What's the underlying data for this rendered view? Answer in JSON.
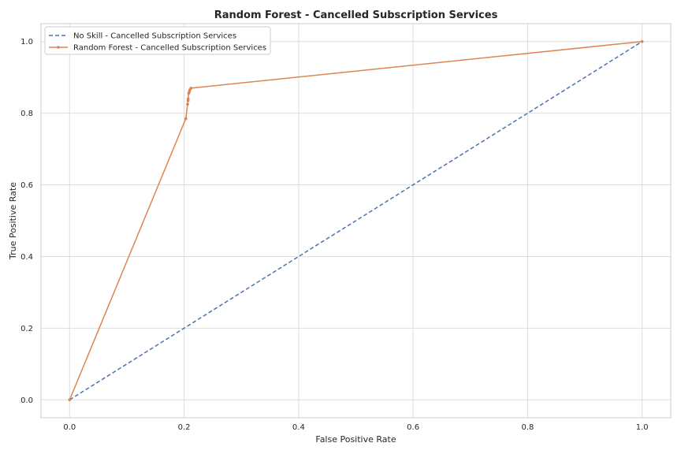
{
  "chart_data": {
    "type": "line",
    "title": "Random Forest - Cancelled Subscription Services",
    "xlabel": "False Positive Rate",
    "ylabel": "True Positive Rate",
    "xlim": [
      -0.05,
      1.05
    ],
    "ylim": [
      -0.05,
      1.05
    ],
    "xticks": [
      0.0,
      0.2,
      0.4,
      0.6,
      0.8,
      1.0
    ],
    "yticks": [
      0.0,
      0.2,
      0.4,
      0.6,
      0.8,
      1.0
    ],
    "xtick_labels": [
      "0.0",
      "0.2",
      "0.4",
      "0.6",
      "0.8",
      "1.0"
    ],
    "ytick_labels": [
      "0.0",
      "0.2",
      "0.4",
      "0.6",
      "0.8",
      "1.0"
    ],
    "grid": true,
    "legend_position": "top-left",
    "series": [
      {
        "name": "No Skill - Cancelled Subscription Services",
        "style": "dashed",
        "color": "#4c72b0",
        "markers": false,
        "x": [
          0.0,
          1.0
        ],
        "y": [
          0.0,
          1.0
        ]
      },
      {
        "name": "Random Forest - Cancelled Subscription Services",
        "style": "solid",
        "color": "#dd8452",
        "markers": true,
        "x": [
          0.0,
          0.203,
          0.206,
          0.207,
          0.207,
          0.208,
          0.209,
          0.21,
          0.212,
          1.0
        ],
        "y": [
          0.0,
          0.785,
          0.825,
          0.835,
          0.84,
          0.855,
          0.86,
          0.865,
          0.87,
          1.0
        ]
      }
    ]
  }
}
